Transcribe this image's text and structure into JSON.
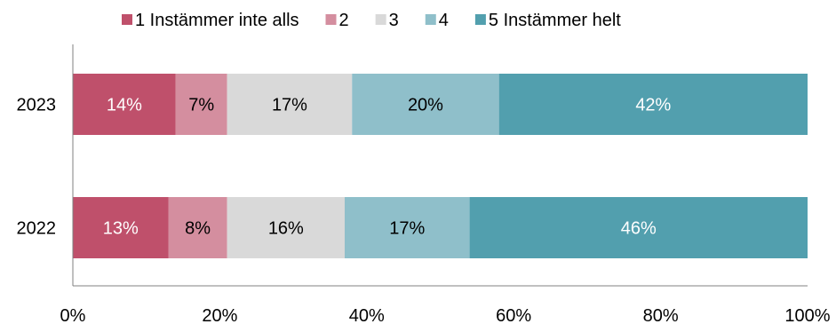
{
  "chart_data": {
    "type": "bar",
    "orientation": "horizontal",
    "stacked": true,
    "categories": [
      "2023",
      "2022"
    ],
    "series": [
      {
        "name": "1 Instämmer inte alls",
        "color": "#bf506b",
        "values": [
          14,
          13
        ],
        "labels": [
          "14%",
          "13%"
        ],
        "label_color": "#ffffff"
      },
      {
        "name": "2",
        "color": "#d48e9f",
        "values": [
          7,
          8
        ],
        "labels": [
          "7%",
          "8%"
        ],
        "label_color": "#000000"
      },
      {
        "name": "3",
        "color": "#d9d9d9",
        "values": [
          17,
          16
        ],
        "labels": [
          "17%",
          "16%"
        ],
        "label_color": "#000000"
      },
      {
        "name": "4",
        "color": "#8fbfca",
        "values": [
          20,
          17
        ],
        "labels": [
          "20%",
          "17%"
        ],
        "label_color": "#000000"
      },
      {
        "name": "5 Instämmer helt",
        "color": "#529fae",
        "values": [
          42,
          46
        ],
        "labels": [
          "42%",
          "46%"
        ],
        "label_color": "#ffffff"
      }
    ],
    "xlim": [
      0,
      100
    ],
    "x_ticks": [
      "0%",
      "20%",
      "40%",
      "60%",
      "80%",
      "100%"
    ],
    "xlabel": "",
    "ylabel": "",
    "grid": false,
    "legend_position": "top"
  }
}
